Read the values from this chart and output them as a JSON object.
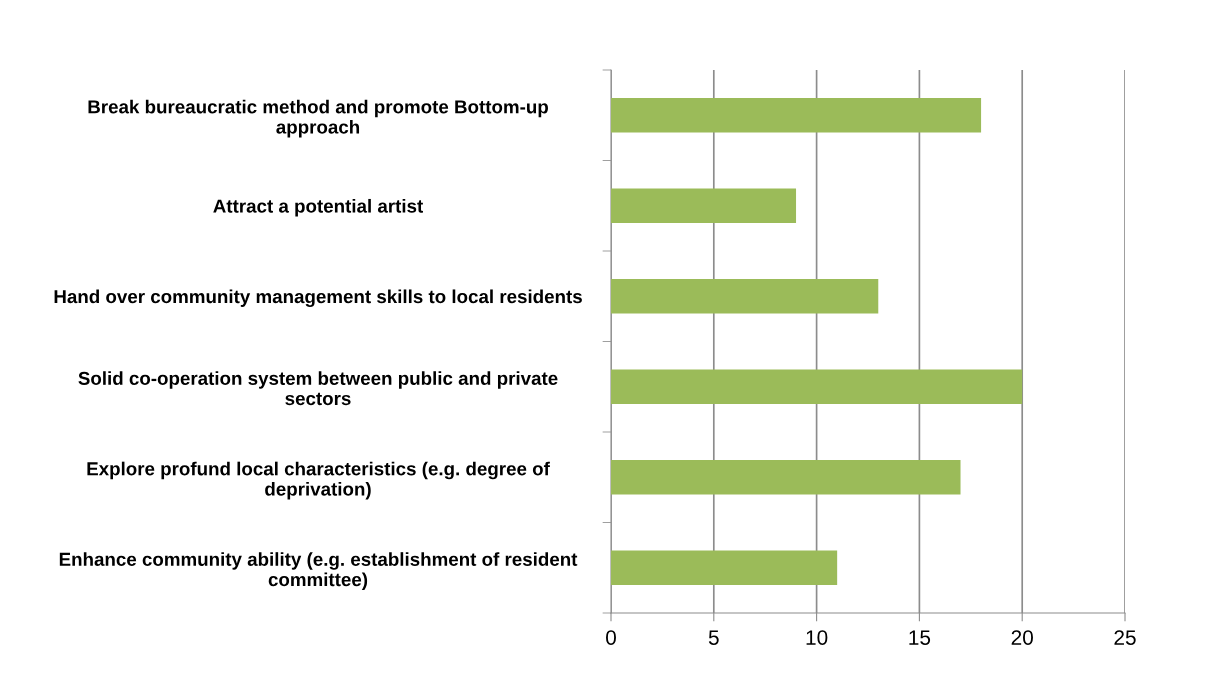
{
  "chart_data": {
    "type": "bar",
    "orientation": "horizontal",
    "categories": [
      "Break bureaucratic method and promote Bottom-up approach",
      "Attract a potential artist",
      "Hand over community management skills to local residents",
      "Solid co-operation system between public and private sectors",
      "Explore profund local characteristics (e.g. degree of deprivation)",
      "Enhance community ability (e.g. establishment of resident committee)"
    ],
    "values": [
      18,
      9,
      13,
      20,
      17,
      11
    ],
    "color": "#9bbb59",
    "xlim": [
      0,
      25
    ],
    "xticks": [
      0,
      5,
      10,
      15,
      20,
      25
    ],
    "grid": "x"
  }
}
